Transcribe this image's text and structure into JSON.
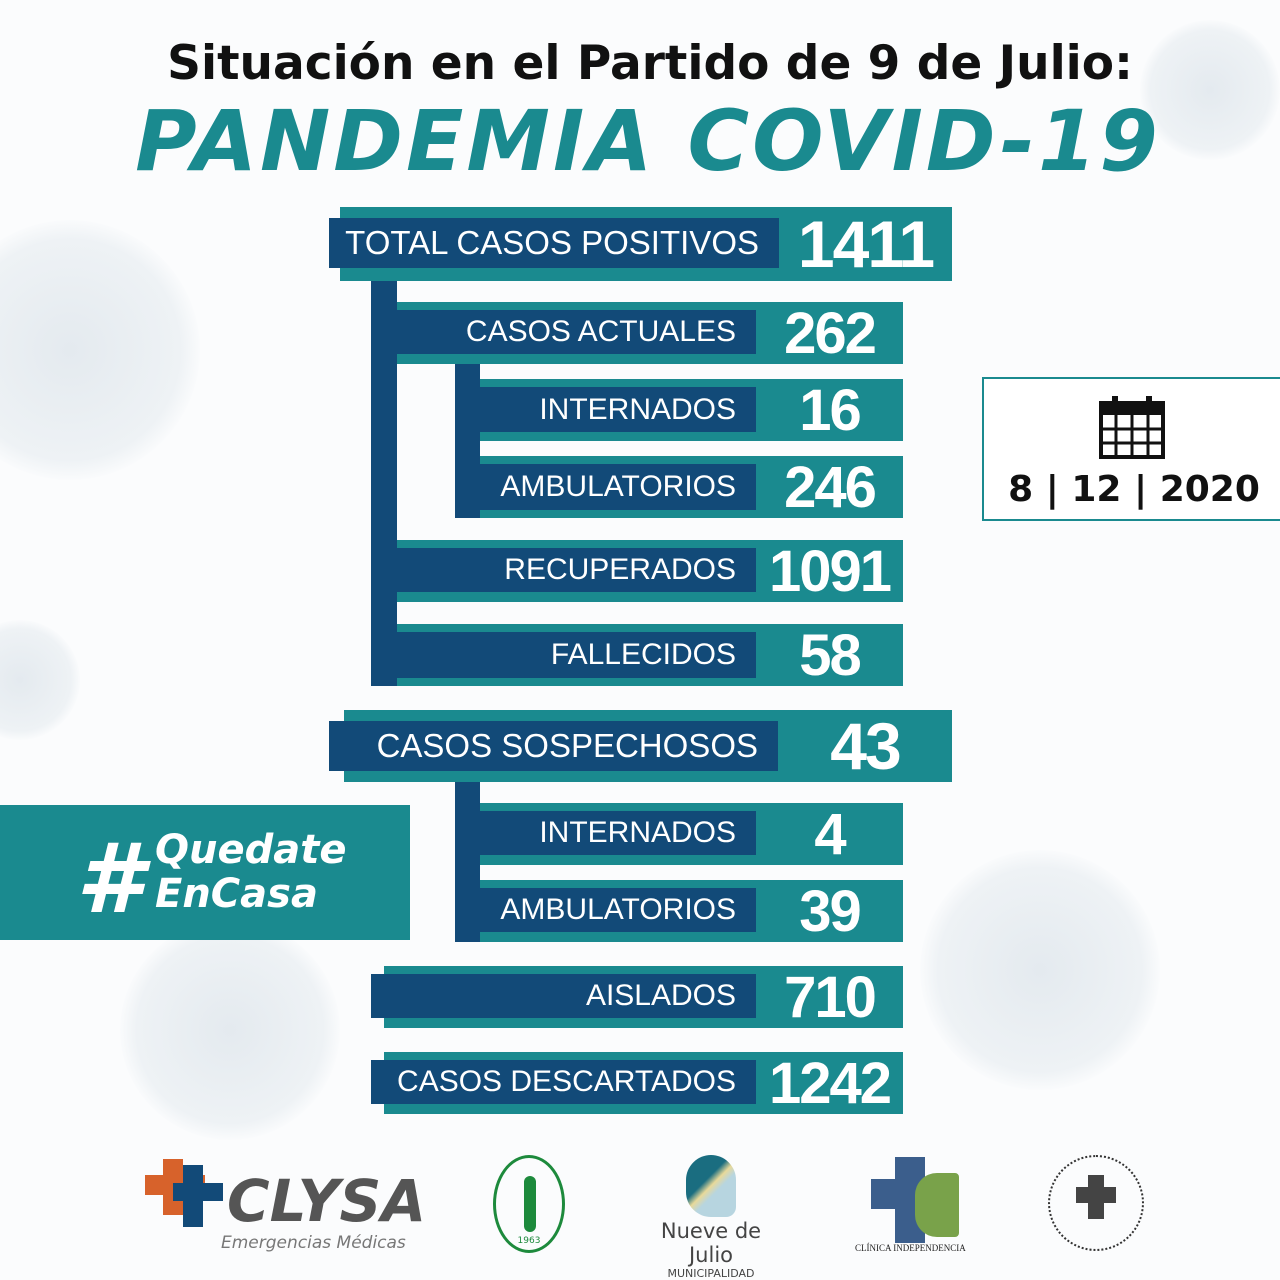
{
  "header": {
    "title": "Situación en el Partido de 9 de Julio:",
    "subtitle": "PANDEMIA COVID-19"
  },
  "colors": {
    "teal": "#1a8a8f",
    "navy": "#124a78"
  },
  "stats": [
    {
      "label": "TOTAL CASOS POSITIVOS",
      "value": "1411"
    },
    {
      "label": "CASOS ACTUALES",
      "value": "262"
    },
    {
      "label": "INTERNADOS",
      "value": "16"
    },
    {
      "label": "AMBULATORIOS",
      "value": "246"
    },
    {
      "label": "RECUPERADOS",
      "value": "1091"
    },
    {
      "label": "FALLECIDOS",
      "value": "58"
    },
    {
      "label": "CASOS SOSPECHOSOS",
      "value": "43"
    },
    {
      "label": "INTERNADOS",
      "value": "4"
    },
    {
      "label": "AMBULATORIOS",
      "value": "39"
    },
    {
      "label": "AISLADOS",
      "value": "710"
    },
    {
      "label": "CASOS DESCARTADOS",
      "value": "1242"
    }
  ],
  "date": {
    "icon": "calendar-icon",
    "day": "8",
    "month": "12",
    "year": "2020"
  },
  "campaign": {
    "hash": "#",
    "line1": "Quedate",
    "line2": "EnCasa"
  },
  "logos": {
    "clysa": "CLYSA",
    "clysa_sub": "Emergencias Médicas",
    "circulo": "1963",
    "nueve": "Nueve de Julio",
    "nueve_sub": "MUNICIPALIDAD",
    "clinica": "CLÍNICA INDEPENDENCIA"
  }
}
